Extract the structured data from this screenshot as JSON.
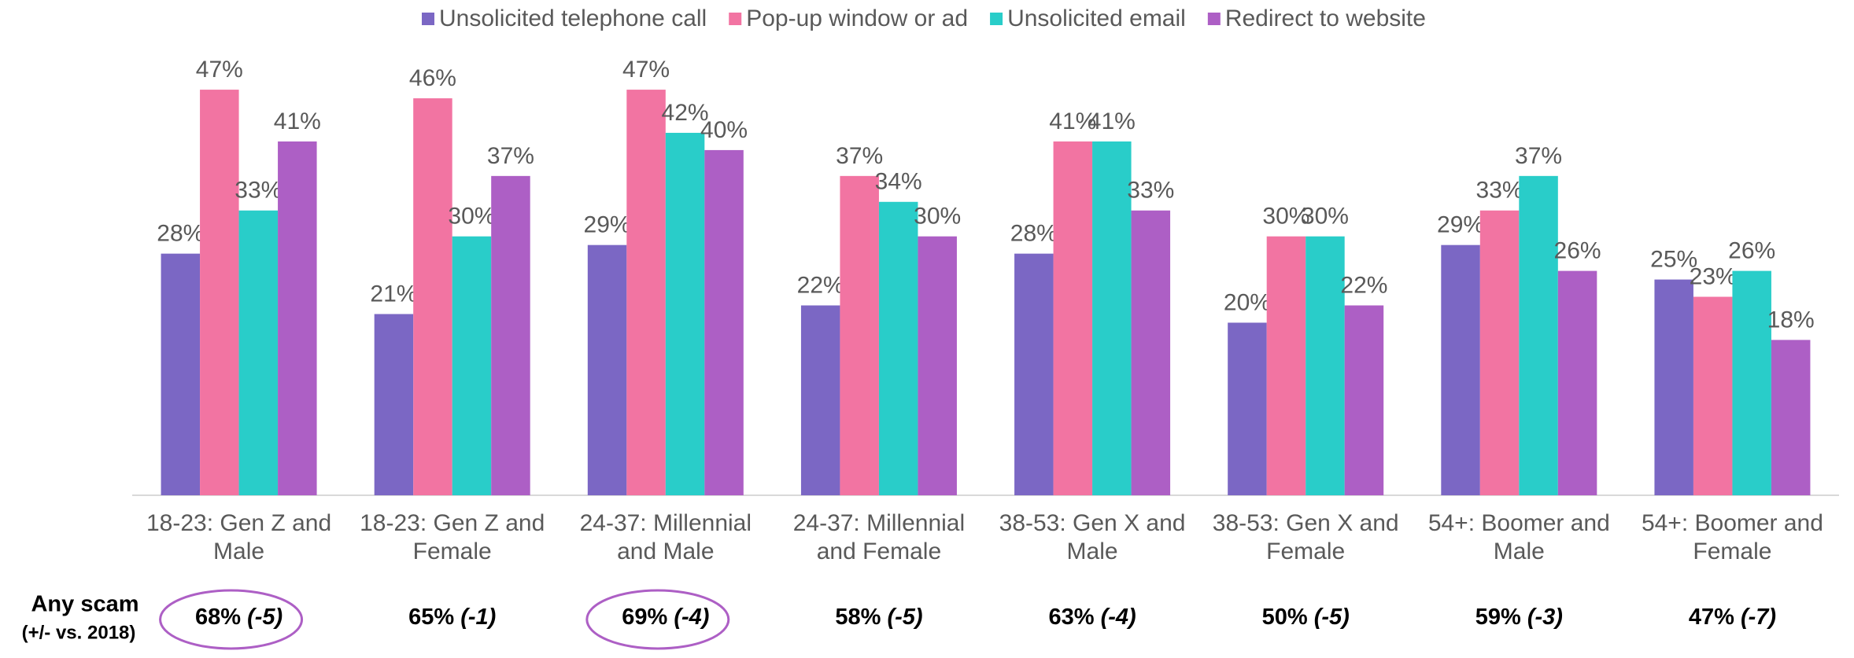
{
  "chart_data": {
    "type": "bar",
    "categories": [
      [
        "18-23: Gen Z and",
        "Male"
      ],
      [
        "18-23: Gen Z and",
        "Female"
      ],
      [
        "24-37: Millennial",
        "and Male"
      ],
      [
        "24-37: Millennial",
        "and Female"
      ],
      [
        "38-53: Gen X and",
        "Male"
      ],
      [
        "38-53: Gen X and",
        "Female"
      ],
      [
        "54+: Boomer and",
        "Male"
      ],
      [
        "54+: Boomer and",
        "Female"
      ]
    ],
    "series": [
      {
        "name": "Unsolicited telephone call",
        "color": "#7b67c4",
        "values": [
          28,
          21,
          29,
          22,
          28,
          20,
          29,
          25
        ],
        "value_labels": [
          "28%",
          "21%",
          "29%",
          "22%",
          "28%",
          "20%",
          "29%",
          "25%"
        ]
      },
      {
        "name": "Pop-up window or ad",
        "color": "#f274a2",
        "values": [
          47,
          46,
          47,
          37,
          41,
          30,
          33,
          23
        ],
        "value_labels": [
          "47%",
          "46%",
          "47%",
          "37%",
          "41%",
          "30%",
          "33%",
          "23%"
        ]
      },
      {
        "name": "Unsolicited email",
        "color": "#29cdc9",
        "values": [
          33,
          30,
          42,
          34,
          41,
          30,
          37,
          26
        ],
        "value_labels": [
          "33%",
          "30%",
          "42%",
          "34%",
          "41%",
          "30%",
          "37%",
          "26%"
        ]
      },
      {
        "name": "Redirect to website",
        "color": "#ad5fc5",
        "values": [
          41,
          37,
          40,
          30,
          33,
          22,
          26,
          18
        ],
        "value_labels": [
          "41%",
          "37%",
          "40%",
          "30%",
          "33%",
          "22%",
          "26%",
          "18%"
        ]
      }
    ],
    "ylim": [
      0,
      50
    ],
    "legend": "top"
  },
  "any_scam": {
    "label": "Any scam",
    "sublabel": "(+/- vs. 2018)",
    "values": [
      "68%",
      "65%",
      "69%",
      "58%",
      "63%",
      "50%",
      "59%",
      "47%"
    ],
    "changes": [
      "(-5)",
      "(-1)",
      "(-4)",
      "(-5)",
      "(-4)",
      "(-5)",
      "(-3)",
      "(-7)"
    ],
    "circled": [
      true,
      false,
      true,
      false,
      false,
      false,
      false,
      false
    ],
    "circle_color": "#ad5fc5"
  }
}
